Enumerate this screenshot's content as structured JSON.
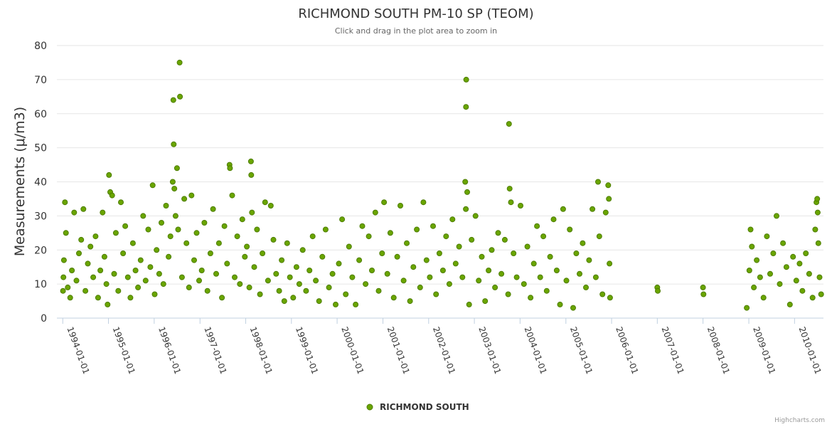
{
  "chart_title": "RICHMOND SOUTH PM-10 SP (TEOM)",
  "chart_subtitle": "Click and drag in the plot area to zoom in",
  "credits": "Highcharts.com",
  "colors": {
    "series": "#6aa500",
    "series_border": "#4d7d00",
    "grid": "#e6e6e6",
    "axis": "#c0d0e0"
  },
  "chart_data": {
    "type": "scatter",
    "title": "RICHMOND SOUTH PM-10 SP (TEOM)",
    "subtitle": "Click and drag in the plot area to zoom in",
    "xlabel": "",
    "ylabel": "Measurements (μ/m3)",
    "ylim": [
      0,
      80
    ],
    "yticks": [
      0,
      10,
      20,
      30,
      40,
      50,
      60,
      70,
      80
    ],
    "xlim": [
      "1993-11-15",
      "2010-08-20"
    ],
    "xticks": [
      "1994-01-01",
      "1995-01-01",
      "1996-01-01",
      "1997-01-01",
      "1998-01-01",
      "1999-01-01",
      "2000-01-01",
      "2001-01-01",
      "2002-01-01",
      "2003-01-01",
      "2004-01-01",
      "2005-01-01",
      "2006-01-01",
      "2007-01-01",
      "2008-01-01",
      "2009-01-01",
      "2010-01-01"
    ],
    "grid": true,
    "legend": "bottom-center",
    "series": [
      {
        "name": "RICHMOND SOUTH",
        "color": "#6aa500",
        "points": [
          [
            "1994-01-03",
            8
          ],
          [
            "1994-01-06",
            12
          ],
          [
            "1994-01-10",
            17
          ],
          [
            "1994-01-18",
            34
          ],
          [
            "1994-01-26",
            25
          ],
          [
            "1994-02-10",
            9
          ],
          [
            "1994-03-01",
            6
          ],
          [
            "1994-03-15",
            14
          ],
          [
            "1994-04-02",
            31
          ],
          [
            "1994-04-20",
            11
          ],
          [
            "1994-05-10",
            19
          ],
          [
            "1994-05-28",
            23
          ],
          [
            "1994-06-15",
            32
          ],
          [
            "1994-07-01",
            8
          ],
          [
            "1994-07-20",
            16
          ],
          [
            "1994-08-10",
            21
          ],
          [
            "1994-09-01",
            12
          ],
          [
            "1994-09-20",
            24
          ],
          [
            "1994-10-10",
            6
          ],
          [
            "1994-10-28",
            14
          ],
          [
            "1994-11-15",
            31
          ],
          [
            "1994-11-30",
            18
          ],
          [
            "1994-12-15",
            10
          ],
          [
            "1994-12-25",
            4
          ],
          [
            "1995-01-05",
            42
          ],
          [
            "1995-01-15",
            37
          ],
          [
            "1995-01-30",
            36
          ],
          [
            "1995-02-15",
            13
          ],
          [
            "1995-03-01",
            25
          ],
          [
            "1995-03-20",
            8
          ],
          [
            "1995-04-10",
            34
          ],
          [
            "1995-04-28",
            19
          ],
          [
            "1995-05-15",
            27
          ],
          [
            "1995-06-05",
            12
          ],
          [
            "1995-06-25",
            6
          ],
          [
            "1995-07-15",
            22
          ],
          [
            "1995-08-05",
            14
          ],
          [
            "1995-08-25",
            9
          ],
          [
            "1995-09-15",
            17
          ],
          [
            "1995-10-05",
            30
          ],
          [
            "1995-10-25",
            11
          ],
          [
            "1995-11-15",
            26
          ],
          [
            "1995-12-01",
            15
          ],
          [
            "1995-12-20",
            39
          ],
          [
            "1996-01-05",
            7
          ],
          [
            "1996-01-20",
            20
          ],
          [
            "1996-02-10",
            13
          ],
          [
            "1996-02-28",
            28
          ],
          [
            "1996-03-15",
            10
          ],
          [
            "1996-04-05",
            33
          ],
          [
            "1996-04-25",
            18
          ],
          [
            "1996-05-10",
            24
          ],
          [
            "1996-05-28",
            40
          ],
          [
            "1996-06-02",
            64
          ],
          [
            "1996-06-05",
            51
          ],
          [
            "1996-06-10",
            38
          ],
          [
            "1996-06-20",
            30
          ],
          [
            "1996-07-01",
            44
          ],
          [
            "1996-07-10",
            26
          ],
          [
            "1996-07-22",
            75
          ],
          [
            "1996-07-25",
            65
          ],
          [
            "1996-08-10",
            12
          ],
          [
            "1996-08-28",
            35
          ],
          [
            "1996-09-15",
            22
          ],
          [
            "1996-10-05",
            9
          ],
          [
            "1996-10-25",
            36
          ],
          [
            "1996-11-15",
            17
          ],
          [
            "1996-12-05",
            25
          ],
          [
            "1996-12-25",
            11
          ],
          [
            "1997-01-15",
            14
          ],
          [
            "1997-02-05",
            28
          ],
          [
            "1997-03-01",
            8
          ],
          [
            "1997-03-25",
            19
          ],
          [
            "1997-04-15",
            32
          ],
          [
            "1997-05-10",
            13
          ],
          [
            "1997-06-01",
            22
          ],
          [
            "1997-06-25",
            6
          ],
          [
            "1997-07-15",
            27
          ],
          [
            "1997-08-05",
            16
          ],
          [
            "1997-08-25",
            45
          ],
          [
            "1997-08-28",
            44
          ],
          [
            "1997-09-15",
            36
          ],
          [
            "1997-10-05",
            12
          ],
          [
            "1997-10-25",
            24
          ],
          [
            "1997-11-15",
            10
          ],
          [
            "1997-12-05",
            29
          ],
          [
            "1997-12-25",
            18
          ],
          [
            "1998-01-10",
            21
          ],
          [
            "1998-01-30",
            9
          ],
          [
            "1998-02-12",
            46
          ],
          [
            "1998-02-14",
            42
          ],
          [
            "1998-02-20",
            31
          ],
          [
            "1998-03-10",
            15
          ],
          [
            "1998-04-01",
            26
          ],
          [
            "1998-04-25",
            7
          ],
          [
            "1998-05-15",
            19
          ],
          [
            "1998-06-05",
            34
          ],
          [
            "1998-06-28",
            11
          ],
          [
            "1998-07-20",
            33
          ],
          [
            "1998-08-10",
            23
          ],
          [
            "1998-09-01",
            13
          ],
          [
            "1998-09-25",
            8
          ],
          [
            "1998-10-15",
            17
          ],
          [
            "1998-11-05",
            5
          ],
          [
            "1998-11-28",
            22
          ],
          [
            "1998-12-20",
            12
          ],
          [
            "1999-01-15",
            6
          ],
          [
            "1999-02-10",
            15
          ],
          [
            "1999-03-05",
            10
          ],
          [
            "1999-04-01",
            20
          ],
          [
            "1999-04-28",
            8
          ],
          [
            "1999-05-25",
            14
          ],
          [
            "1999-06-20",
            24
          ],
          [
            "1999-07-15",
            11
          ],
          [
            "1999-08-10",
            5
          ],
          [
            "1999-09-05",
            18
          ],
          [
            "1999-10-01",
            26
          ],
          [
            "1999-10-28",
            9
          ],
          [
            "1999-11-25",
            13
          ],
          [
            "1999-12-20",
            4
          ],
          [
            "2000-01-15",
            16
          ],
          [
            "2000-02-10",
            29
          ],
          [
            "2000-03-10",
            7
          ],
          [
            "2000-04-05",
            21
          ],
          [
            "2000-05-01",
            12
          ],
          [
            "2000-05-28",
            4
          ],
          [
            "2000-06-25",
            17
          ],
          [
            "2000-07-20",
            27
          ],
          [
            "2000-08-15",
            10
          ],
          [
            "2000-09-10",
            24
          ],
          [
            "2000-10-05",
            14
          ],
          [
            "2000-11-01",
            31
          ],
          [
            "2000-11-28",
            8
          ],
          [
            "2000-12-25",
            19
          ],
          [
            "2001-01-10",
            34
          ],
          [
            "2001-02-05",
            13
          ],
          [
            "2001-03-01",
            25
          ],
          [
            "2001-03-28",
            6
          ],
          [
            "2001-04-25",
            18
          ],
          [
            "2001-05-20",
            33
          ],
          [
            "2001-06-15",
            11
          ],
          [
            "2001-07-10",
            22
          ],
          [
            "2001-08-05",
            5
          ],
          [
            "2001-09-01",
            15
          ],
          [
            "2001-09-28",
            26
          ],
          [
            "2001-10-25",
            9
          ],
          [
            "2001-11-20",
            34
          ],
          [
            "2001-12-15",
            17
          ],
          [
            "2002-01-10",
            12
          ],
          [
            "2002-02-05",
            27
          ],
          [
            "2002-03-01",
            7
          ],
          [
            "2002-03-28",
            19
          ],
          [
            "2002-04-25",
            14
          ],
          [
            "2002-05-20",
            24
          ],
          [
            "2002-06-15",
            10
          ],
          [
            "2002-07-10",
            29
          ],
          [
            "2002-08-05",
            16
          ],
          [
            "2002-09-01",
            21
          ],
          [
            "2002-09-28",
            12
          ],
          [
            "2002-10-20",
            40
          ],
          [
            "2002-10-25",
            32
          ],
          [
            "2002-10-26",
            62
          ],
          [
            "2002-10-28",
            70
          ],
          [
            "2002-11-05",
            37
          ],
          [
            "2002-11-20",
            4
          ],
          [
            "2002-12-10",
            23
          ],
          [
            "2003-01-10",
            30
          ],
          [
            "2003-02-05",
            11
          ],
          [
            "2003-03-01",
            18
          ],
          [
            "2003-03-28",
            5
          ],
          [
            "2003-04-25",
            14
          ],
          [
            "2003-05-20",
            20
          ],
          [
            "2003-06-15",
            9
          ],
          [
            "2003-07-10",
            25
          ],
          [
            "2003-08-05",
            13
          ],
          [
            "2003-09-01",
            23
          ],
          [
            "2003-09-28",
            7
          ],
          [
            "2003-10-05",
            57
          ],
          [
            "2003-10-10",
            38
          ],
          [
            "2003-10-20",
            34
          ],
          [
            "2003-11-10",
            19
          ],
          [
            "2003-12-05",
            12
          ],
          [
            "2004-01-05",
            33
          ],
          [
            "2004-02-01",
            10
          ],
          [
            "2004-02-28",
            21
          ],
          [
            "2004-03-25",
            6
          ],
          [
            "2004-04-20",
            16
          ],
          [
            "2004-05-15",
            27
          ],
          [
            "2004-06-10",
            12
          ],
          [
            "2004-07-05",
            24
          ],
          [
            "2004-08-01",
            8
          ],
          [
            "2004-08-28",
            18
          ],
          [
            "2004-09-25",
            29
          ],
          [
            "2004-10-20",
            14
          ],
          [
            "2004-11-15",
            4
          ],
          [
            "2004-12-10",
            32
          ],
          [
            "2005-01-05",
            11
          ],
          [
            "2005-02-01",
            26
          ],
          [
            "2005-02-28",
            3
          ],
          [
            "2005-03-25",
            19
          ],
          [
            "2005-04-20",
            13
          ],
          [
            "2005-05-15",
            22
          ],
          [
            "2005-06-10",
            9
          ],
          [
            "2005-07-05",
            17
          ],
          [
            "2005-08-01",
            32
          ],
          [
            "2005-08-28",
            12
          ],
          [
            "2005-09-15",
            40
          ],
          [
            "2005-09-25",
            24
          ],
          [
            "2005-10-20",
            7
          ],
          [
            "2005-11-15",
            31
          ],
          [
            "2005-12-05",
            39
          ],
          [
            "2005-12-10",
            35
          ],
          [
            "2005-12-15",
            16
          ],
          [
            "2005-12-20",
            6
          ],
          [
            "2007-01-01",
            9
          ],
          [
            "2007-01-05",
            8
          ],
          [
            "2008-01-01",
            9
          ],
          [
            "2008-01-05",
            7
          ],
          [
            "2008-12-15",
            3
          ],
          [
            "2009-01-05",
            14
          ],
          [
            "2009-01-15",
            26
          ],
          [
            "2009-01-25",
            21
          ],
          [
            "2009-02-10",
            9
          ],
          [
            "2009-03-05",
            17
          ],
          [
            "2009-04-01",
            12
          ],
          [
            "2009-04-28",
            6
          ],
          [
            "2009-05-25",
            24
          ],
          [
            "2009-06-20",
            13
          ],
          [
            "2009-07-15",
            19
          ],
          [
            "2009-08-10",
            30
          ],
          [
            "2009-09-05",
            10
          ],
          [
            "2009-10-01",
            22
          ],
          [
            "2009-10-28",
            15
          ],
          [
            "2009-11-25",
            4
          ],
          [
            "2009-12-20",
            18
          ],
          [
            "2010-01-15",
            11
          ],
          [
            "2010-02-10",
            16
          ],
          [
            "2010-03-05",
            8
          ],
          [
            "2010-04-01",
            19
          ],
          [
            "2010-04-28",
            13
          ],
          [
            "2010-05-25",
            6
          ],
          [
            "2010-06-15",
            26
          ],
          [
            "2010-06-25",
            34
          ],
          [
            "2010-07-01",
            35
          ],
          [
            "2010-07-05",
            31
          ],
          [
            "2010-07-10",
            22
          ],
          [
            "2010-07-20",
            12
          ],
          [
            "2010-08-01",
            7
          ]
        ]
      }
    ]
  }
}
